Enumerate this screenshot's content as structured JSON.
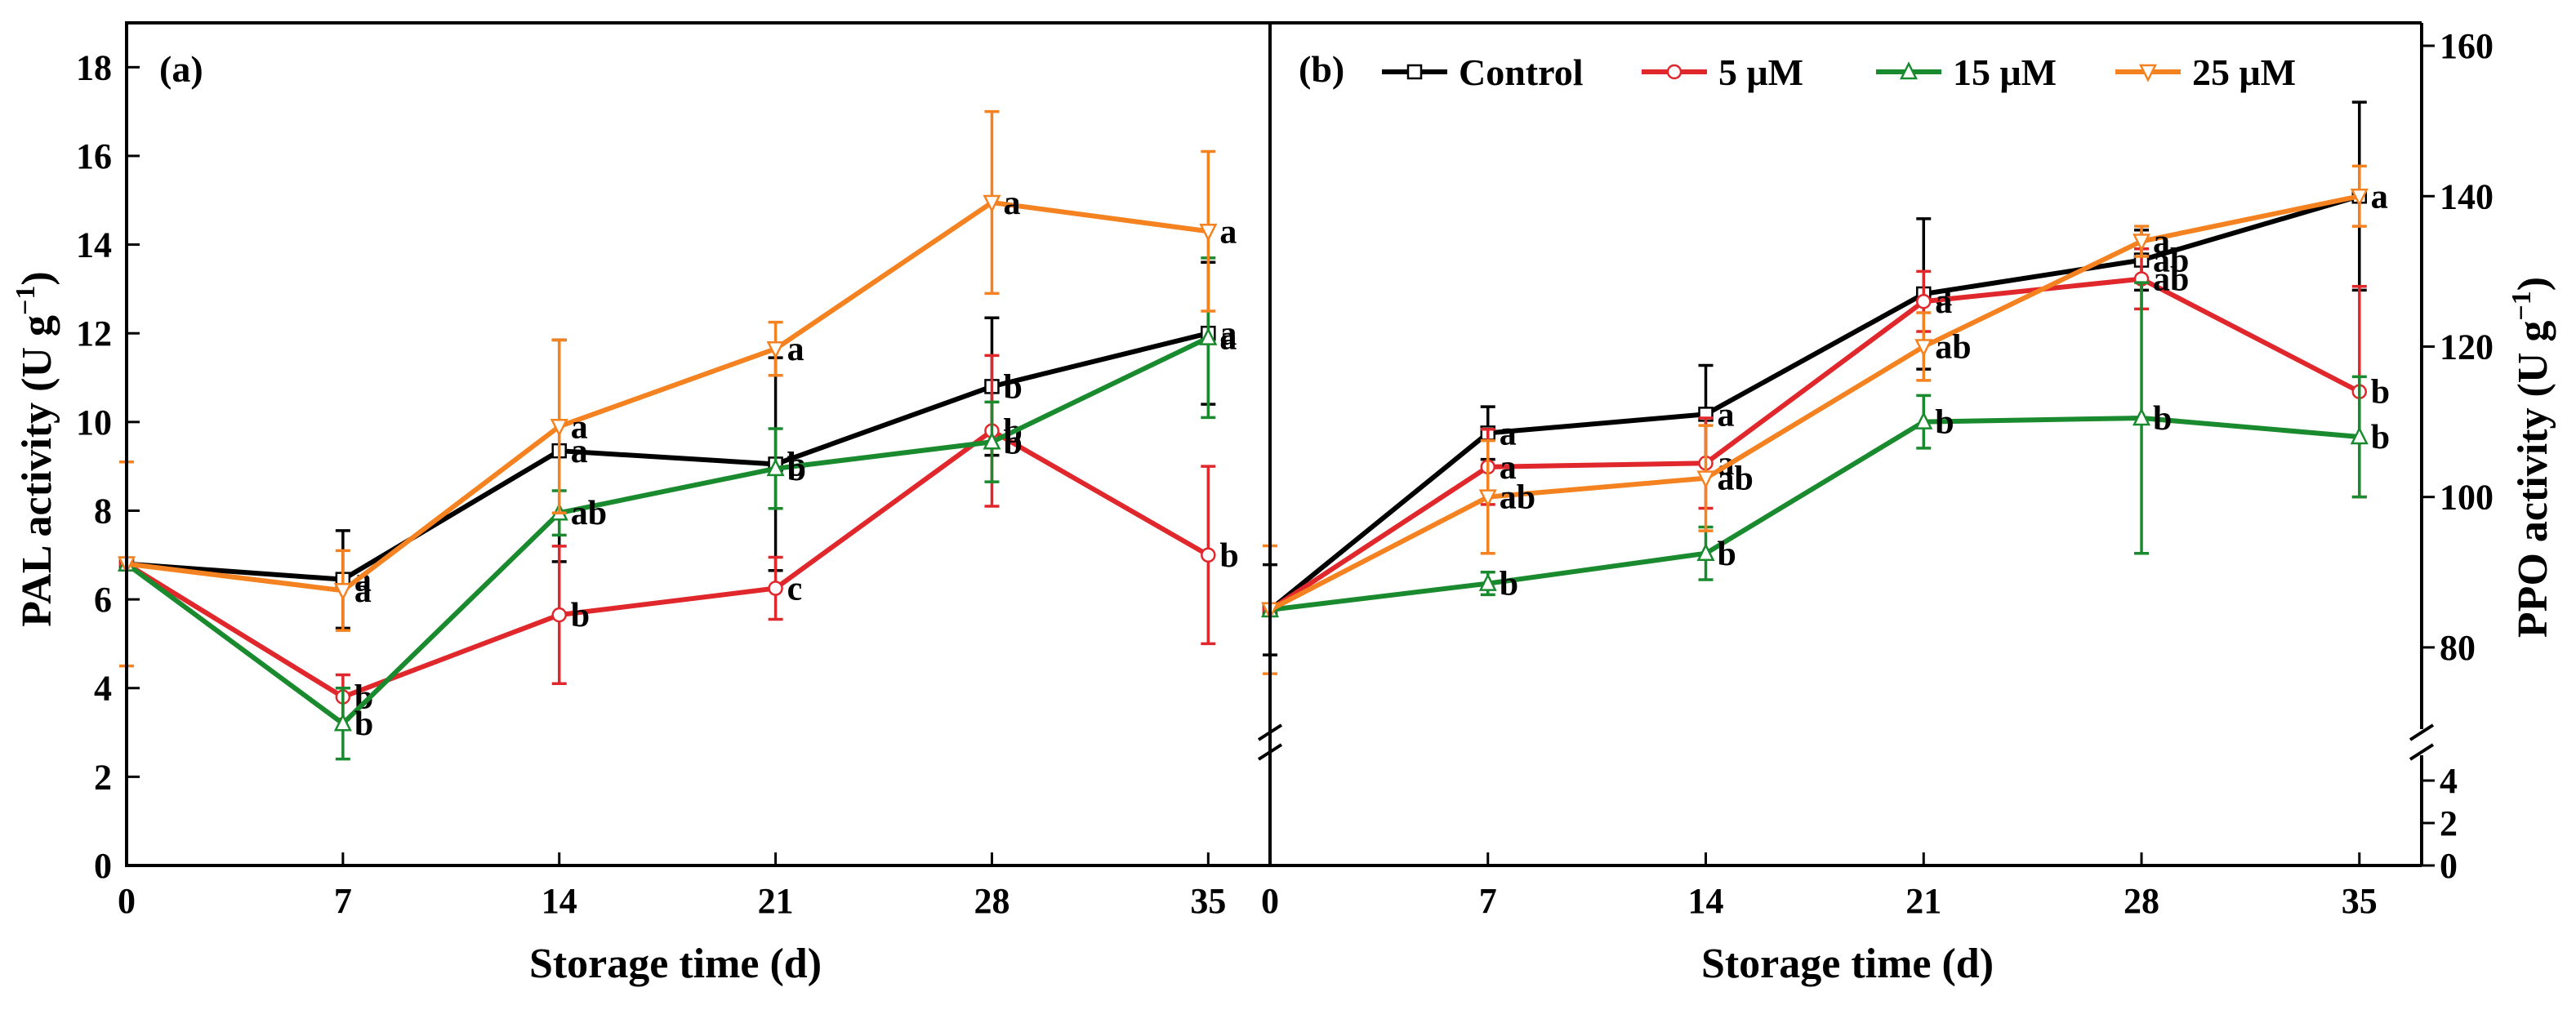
{
  "colors": {
    "Control": "#000000",
    "5 μM": "#e0282c",
    "15 μM": "#1a8a2e",
    "25 μM": "#f58220"
  },
  "chart_data": [
    {
      "type": "line",
      "panel_label": "(a)",
      "xlabel": "Storage time (d)",
      "ylabel": "PAL activity (U g",
      "ylabel_sup": "−1",
      "ylabel_end": ")",
      "x": [
        0,
        7,
        14,
        21,
        28,
        35
      ],
      "x_ticks": [
        "0",
        "7",
        "14",
        "21",
        "28",
        "35"
      ],
      "xlim": [
        0,
        37
      ],
      "ylim": [
        0,
        19
      ],
      "y_ticks": [
        "0",
        "2",
        "4",
        "6",
        "8",
        "10",
        "12",
        "14",
        "16",
        "18"
      ],
      "grid": false,
      "series": [
        {
          "name": "Control",
          "marker": "square",
          "values": [
            6.8,
            6.45,
            9.35,
            9.05,
            10.8,
            12.0
          ],
          "errors": [
            0.0,
            1.1,
            2.5,
            2.4,
            1.55,
            1.6
          ],
          "labels": [
            "",
            "a",
            "a",
            "b",
            "b",
            "a"
          ]
        },
        {
          "name": "5 μM",
          "marker": "circle",
          "values": [
            6.8,
            3.8,
            5.65,
            6.25,
            9.8,
            7.0
          ],
          "errors": [
            0.0,
            0.5,
            1.55,
            0.7,
            1.7,
            2.0
          ],
          "labels": [
            "",
            "b",
            "b",
            "c",
            "b",
            "b"
          ]
        },
        {
          "name": "15 μM",
          "marker": "triangle-up",
          "values": [
            6.8,
            3.2,
            7.95,
            8.95,
            9.55,
            11.9
          ],
          "errors": [
            0.0,
            0.8,
            0.5,
            0.9,
            0.9,
            1.8
          ],
          "labels": [
            "",
            "b",
            "ab",
            "b",
            "b",
            "a"
          ]
        },
        {
          "name": "25 μM",
          "marker": "triangle-down",
          "values": [
            6.8,
            6.2,
            9.9,
            11.65,
            14.95,
            14.3
          ],
          "errors": [
            2.3,
            0.9,
            1.95,
            0.6,
            2.05,
            1.8
          ],
          "labels": [
            "",
            "a",
            "a",
            "a",
            "a",
            "a"
          ]
        }
      ]
    },
    {
      "type": "line",
      "panel_label": "(b)",
      "xlabel": "Storage time (d)",
      "ylabel": "PPO activity (U g",
      "ylabel_sup": "−1",
      "ylabel_end": ")",
      "x": [
        0,
        7,
        14,
        21,
        28,
        35
      ],
      "x_ticks": [
        "0",
        "7",
        "14",
        "21",
        "28",
        "35"
      ],
      "xlim": [
        0,
        37
      ],
      "ylim_lower": [
        0,
        5
      ],
      "y_ticks_lower": [
        "0",
        "2",
        "4"
      ],
      "ylim_upper": [
        70,
        165
      ],
      "y_ticks_upper": [
        "80",
        "100",
        "120",
        "140",
        "160"
      ],
      "axis_break": true,
      "legend_position": "top",
      "grid": false,
      "series": [
        {
          "name": "Control",
          "marker": "square",
          "values": [
            85.0,
            108.5,
            111.0,
            127.0,
            131.5,
            140.0
          ],
          "errors": [
            6.0,
            3.5,
            6.5,
            10.0,
            4.0,
            12.5
          ],
          "labels": [
            "",
            "a",
            "a",
            "a",
            "ab",
            "a"
          ]
        },
        {
          "name": "5 μM",
          "marker": "circle",
          "values": [
            85.0,
            104.0,
            104.5,
            126.0,
            129.0,
            114.0
          ],
          "errors": [
            0.0,
            5.0,
            6.0,
            4.0,
            4.0,
            14.0
          ],
          "labels": [
            "",
            "a",
            "a",
            "a",
            "ab",
            "b"
          ]
        },
        {
          "name": "15 μM",
          "marker": "triangle-up",
          "values": [
            85.0,
            88.5,
            92.5,
            110.0,
            110.5,
            108.0
          ],
          "errors": [
            0.0,
            1.5,
            3.5,
            3.5,
            18.0,
            8.0
          ],
          "labels": [
            "",
            "b",
            "b",
            "b",
            "b",
            "b"
          ]
        },
        {
          "name": "25 μM",
          "marker": "triangle-down",
          "values": [
            85.0,
            100.0,
            102.5,
            120.0,
            134.0,
            140.0
          ],
          "errors": [
            8.5,
            7.5,
            7.0,
            4.5,
            2.0,
            4.0
          ],
          "labels": [
            "",
            "ab",
            "ab",
            "ab",
            "a",
            "a"
          ]
        }
      ]
    }
  ]
}
